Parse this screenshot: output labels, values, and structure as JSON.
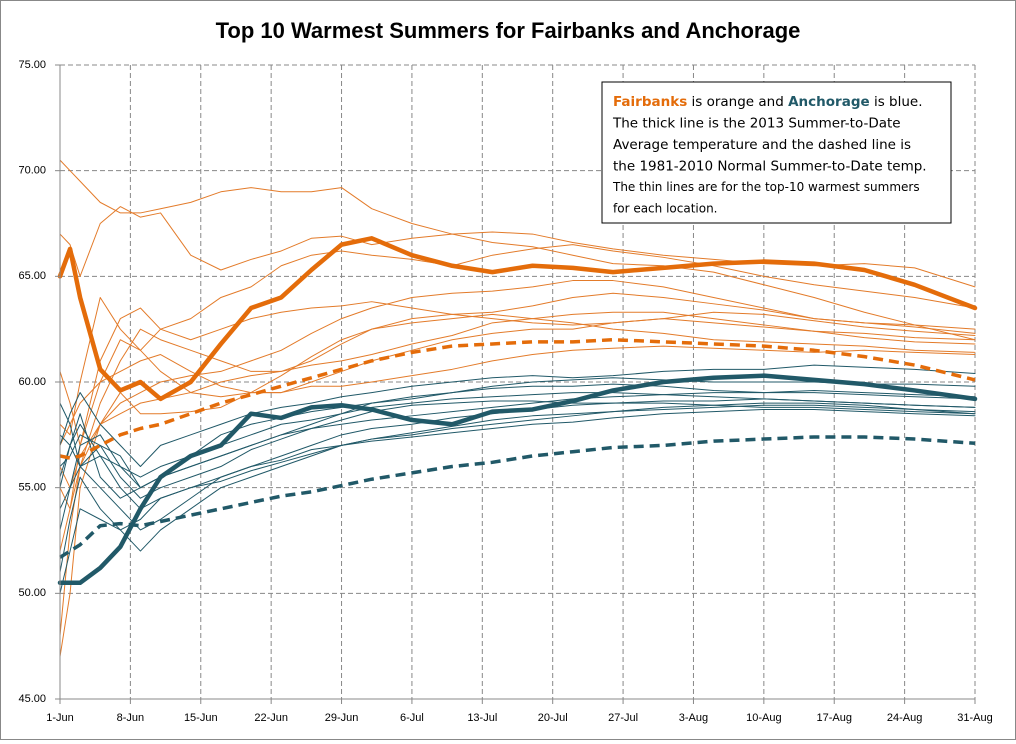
{
  "chart_data": {
    "type": "line",
    "title": "Top 10 Warmest Summers for Fairbanks and Anchorage",
    "annotation": {
      "lines": [
        [
          {
            "text": "Fairbanks",
            "color": "#e46c0a",
            "bold": true
          },
          {
            "text": " is orange and "
          },
          {
            "text": "Anchorage",
            "color": "#215968",
            "bold": true
          },
          {
            "text": " is blue."
          }
        ],
        [
          {
            "text": "The thick line is the 2013 Summer-to-Date"
          }
        ],
        [
          {
            "text": "Average temperature and the dashed line is"
          }
        ],
        [
          {
            "text": "the 1981-2010 Normal Summer-to-Date temp."
          }
        ],
        [
          {
            "text": "The thin lines are for the top-10 warmest summers"
          }
        ],
        [
          {
            "text": "for each location."
          }
        ]
      ]
    },
    "xlim": [
      0,
      91
    ],
    "xticks": [
      {
        "value": 0,
        "label": "1-Jun"
      },
      {
        "value": 7,
        "label": "8-Jun"
      },
      {
        "value": 14,
        "label": "15-Jun"
      },
      {
        "value": 21,
        "label": "22-Jun"
      },
      {
        "value": 28,
        "label": "29-Jun"
      },
      {
        "value": 35,
        "label": "6-Jul"
      },
      {
        "value": 42,
        "label": "13-Jul"
      },
      {
        "value": 49,
        "label": "20-Jul"
      },
      {
        "value": 56,
        "label": "27-Jul"
      },
      {
        "value": 63,
        "label": "3-Aug"
      },
      {
        "value": 70,
        "label": "10-Aug"
      },
      {
        "value": 77,
        "label": "17-Aug"
      },
      {
        "value": 84,
        "label": "24-Aug"
      },
      {
        "value": 91,
        "label": "31-Aug"
      }
    ],
    "ylim": [
      45,
      75
    ],
    "yticks": [
      {
        "value": 45,
        "label": "45.00"
      },
      {
        "value": 50,
        "label": "50.00"
      },
      {
        "value": 55,
        "label": "55.00"
      },
      {
        "value": 60,
        "label": "60.00"
      },
      {
        "value": 65,
        "label": "65.00"
      },
      {
        "value": 70,
        "label": "70.00"
      },
      {
        "value": 75,
        "label": "75.00"
      }
    ],
    "grid": true,
    "x": [
      0,
      1,
      2,
      4,
      6,
      8,
      10,
      13,
      16,
      19,
      22,
      25,
      28,
      31,
      35,
      39,
      43,
      47,
      51,
      55,
      60,
      65,
      70,
      75,
      80,
      85,
      91
    ],
    "series": [
      {
        "color": "#e37b2a",
        "width": 1,
        "values": [
          70.5,
          70.0,
          69.5,
          68.5,
          68.0,
          68.0,
          68.2,
          68.5,
          69.0,
          69.2,
          69.0,
          69.0,
          69.2,
          68.2,
          67.5,
          67.0,
          66.6,
          66.4,
          66.0,
          65.6,
          65.5,
          65.2,
          64.6,
          64.0,
          63.3,
          62.7,
          62.0
        ]
      },
      {
        "color": "#e37b2a",
        "width": 1,
        "values": [
          67.0,
          66.5,
          65.0,
          67.5,
          68.3,
          67.8,
          68.0,
          66.0,
          65.3,
          65.8,
          66.2,
          66.8,
          66.9,
          66.5,
          66.8,
          67.0,
          67.1,
          67.0,
          66.6,
          66.3,
          66.0,
          65.8,
          65.6,
          65.5,
          65.6,
          65.4,
          64.5
        ]
      },
      {
        "color": "#e37b2a",
        "width": 1,
        "values": [
          58.0,
          57.5,
          60.0,
          64.0,
          62.5,
          61.5,
          62.5,
          63.0,
          64.0,
          64.5,
          65.5,
          66.0,
          66.2,
          66.0,
          65.8,
          65.5,
          66.0,
          66.3,
          66.5,
          66.2,
          65.9,
          65.5,
          65.0,
          64.6,
          64.3,
          64.0,
          63.5
        ]
      },
      {
        "color": "#e37b2a",
        "width": 1,
        "values": [
          60.5,
          59.0,
          57.0,
          61.0,
          63.0,
          63.5,
          62.5,
          62.0,
          62.5,
          63.0,
          63.3,
          63.5,
          63.6,
          63.8,
          63.5,
          63.2,
          63.3,
          63.6,
          64.0,
          64.2,
          64.0,
          63.7,
          63.4,
          63.0,
          62.8,
          62.6,
          62.3
        ]
      },
      {
        "color": "#e37b2a",
        "width": 1,
        "values": [
          55.0,
          54.0,
          56.0,
          59.0,
          61.0,
          62.5,
          62.0,
          61.5,
          61.0,
          60.5,
          60.5,
          61.0,
          61.8,
          62.5,
          63.0,
          63.2,
          63.0,
          62.8,
          62.7,
          62.8,
          63.0,
          63.3,
          63.2,
          62.9,
          62.6,
          62.4,
          62.2
        ]
      },
      {
        "color": "#e37b2a",
        "width": 1,
        "values": [
          57.0,
          58.0,
          59.0,
          60.0,
          60.5,
          61.0,
          61.3,
          60.5,
          59.8,
          59.5,
          59.5,
          60.0,
          60.5,
          61.0,
          61.5,
          62.0,
          62.3,
          62.5,
          62.5,
          62.8,
          63.0,
          62.8,
          62.6,
          62.4,
          62.3,
          62.1,
          62.0
        ]
      },
      {
        "color": "#e37b2a",
        "width": 1,
        "values": [
          48.0,
          53.0,
          56.0,
          58.0,
          58.5,
          59.0,
          59.2,
          59.5,
          60.0,
          60.3,
          60.5,
          60.8,
          61.0,
          61.3,
          61.8,
          62.2,
          62.8,
          63.0,
          63.2,
          63.3,
          63.3,
          63.0,
          62.7,
          62.4,
          62.1,
          61.9,
          61.8
        ]
      },
      {
        "color": "#e37b2a",
        "width": 1,
        "values": [
          47.0,
          50.0,
          55.0,
          58.0,
          59.5,
          58.5,
          58.5,
          58.6,
          58.8,
          59.5,
          60.3,
          61.2,
          62.0,
          62.5,
          62.8,
          63.0,
          63.2,
          63.0,
          62.8,
          62.5,
          62.3,
          62.0,
          61.9,
          61.8,
          61.7,
          61.5,
          61.4
        ]
      },
      {
        "color": "#e37b2a",
        "width": 1,
        "values": [
          52.0,
          54.0,
          57.0,
          60.0,
          62.0,
          61.5,
          60.5,
          59.5,
          59.3,
          59.5,
          59.5,
          59.8,
          59.8,
          60.0,
          60.3,
          60.6,
          61.0,
          61.3,
          61.5,
          61.6,
          61.7,
          61.6,
          61.5,
          61.4,
          61.5,
          61.4,
          61.3
        ]
      },
      {
        "color": "#e37b2a",
        "width": 1,
        "values": [
          56.0,
          55.0,
          56.5,
          58.0,
          59.0,
          59.5,
          60.0,
          60.3,
          60.5,
          61.0,
          61.5,
          62.3,
          63.0,
          63.5,
          64.0,
          64.2,
          64.3,
          64.5,
          64.8,
          64.8,
          64.5,
          64.0,
          63.5,
          63.0,
          62.8,
          62.7,
          62.5
        ]
      },
      {
        "color": "#215968",
        "width": 1,
        "values": [
          57.0,
          58.5,
          59.5,
          58.0,
          57.0,
          56.0,
          57.0,
          57.5,
          58.0,
          58.5,
          58.8,
          59.0,
          59.3,
          59.5,
          59.8,
          60.0,
          60.2,
          60.3,
          60.2,
          60.3,
          60.5,
          60.6,
          60.6,
          60.8,
          60.7,
          60.6,
          60.4
        ]
      },
      {
        "color": "#215968",
        "width": 1,
        "values": [
          59.0,
          58.0,
          56.0,
          57.0,
          56.5,
          55.0,
          55.5,
          56.0,
          56.5,
          57.0,
          57.5,
          58.0,
          58.5,
          59.0,
          59.3,
          59.5,
          59.8,
          60.0,
          60.1,
          60.2,
          60.1,
          60.0,
          60.0,
          60.0,
          59.9,
          59.9,
          59.8
        ]
      },
      {
        "color": "#215968",
        "width": 1,
        "values": [
          55.0,
          57.0,
          58.5,
          55.5,
          54.5,
          55.0,
          55.5,
          56.5,
          57.5,
          58.0,
          58.3,
          58.6,
          58.8,
          59.0,
          59.2,
          59.5,
          59.7,
          59.8,
          59.8,
          59.9,
          59.8,
          59.6,
          59.5,
          59.5,
          59.4,
          59.3,
          59.2
        ]
      },
      {
        "color": "#215968",
        "width": 1,
        "values": [
          57.5,
          57.0,
          56.0,
          56.5,
          56.0,
          55.5,
          56.0,
          56.5,
          57.0,
          57.5,
          58.0,
          58.2,
          58.5,
          58.8,
          59.0,
          59.2,
          59.3,
          59.4,
          59.5,
          59.5,
          59.4,
          59.3,
          59.2,
          59.1,
          59.0,
          58.9,
          58.8
        ]
      },
      {
        "color": "#215968",
        "width": 1,
        "values": [
          56.0,
          56.5,
          57.5,
          57.0,
          55.5,
          54.5,
          55.0,
          55.5,
          56.0,
          56.8,
          57.3,
          57.8,
          58.2,
          58.6,
          58.9,
          59.0,
          59.1,
          59.1,
          59.0,
          59.0,
          59.0,
          58.9,
          58.8,
          58.8,
          58.7,
          58.6,
          58.5
        ]
      },
      {
        "color": "#215968",
        "width": 1,
        "values": [
          54.0,
          55.0,
          56.0,
          55.0,
          54.0,
          53.0,
          53.5,
          54.5,
          55.5,
          56.0,
          56.5,
          57.0,
          57.5,
          57.8,
          58.0,
          58.3,
          58.5,
          58.7,
          58.9,
          59.0,
          59.1,
          59.1,
          59.2,
          59.1,
          59.0,
          58.9,
          58.8
        ]
      },
      {
        "color": "#215968",
        "width": 1,
        "values": [
          51.0,
          53.5,
          55.5,
          54.0,
          53.0,
          52.0,
          53.0,
          54.0,
          55.0,
          55.5,
          56.0,
          56.5,
          57.0,
          57.3,
          57.6,
          57.9,
          58.2,
          58.4,
          58.5,
          58.6,
          58.7,
          58.8,
          58.9,
          58.9,
          58.8,
          58.7,
          58.6
        ]
      },
      {
        "color": "#215968",
        "width": 1,
        "values": [
          50.0,
          52.0,
          54.0,
          53.5,
          53.0,
          53.5,
          54.5,
          55.0,
          55.5,
          56.0,
          56.3,
          56.8,
          57.0,
          57.3,
          57.5,
          57.8,
          58.0,
          58.2,
          58.4,
          58.6,
          58.8,
          58.9,
          59.0,
          59.0,
          58.9,
          58.7,
          58.5
        ]
      },
      {
        "color": "#215968",
        "width": 1,
        "values": [
          55.5,
          57.0,
          58.0,
          56.5,
          55.0,
          54.0,
          54.5,
          55.0,
          55.3,
          55.8,
          56.2,
          56.6,
          57.0,
          57.2,
          57.4,
          57.6,
          57.8,
          58.0,
          58.1,
          58.3,
          58.5,
          58.6,
          58.7,
          58.7,
          58.6,
          58.5,
          58.4
        ]
      },
      {
        "color": "#215968",
        "width": 1,
        "values": [
          53.0,
          55.0,
          57.0,
          57.5,
          56.0,
          55.0,
          55.5,
          56.0,
          56.5,
          57.0,
          57.5,
          57.8,
          58.0,
          58.2,
          58.4,
          58.6,
          58.8,
          59.0,
          59.2,
          59.3,
          59.4,
          59.5,
          59.5,
          59.6,
          59.5,
          59.4,
          59.3
        ]
      },
      {
        "color": "#e46c0a",
        "width": 3.5,
        "dash": true,
        "values": [
          56.5,
          56.4,
          56.5,
          57.0,
          57.5,
          57.8,
          58.0,
          58.5,
          59.0,
          59.4,
          59.8,
          60.2,
          60.6,
          61.0,
          61.4,
          61.7,
          61.8,
          61.9,
          61.9,
          62.0,
          61.9,
          61.8,
          61.7,
          61.5,
          61.2,
          60.8,
          60.1
        ]
      },
      {
        "color": "#215968",
        "width": 3.5,
        "dash": true,
        "values": [
          51.7,
          52.0,
          52.3,
          53.2,
          53.3,
          53.2,
          53.4,
          53.7,
          54.0,
          54.3,
          54.6,
          54.8,
          55.1,
          55.4,
          55.7,
          56.0,
          56.2,
          56.5,
          56.7,
          56.9,
          57.0,
          57.2,
          57.3,
          57.4,
          57.4,
          57.3,
          57.1
        ]
      },
      {
        "color": "#e46c0a",
        "width": 4.5,
        "values": [
          65.0,
          66.3,
          64.0,
          60.6,
          59.6,
          60.0,
          59.2,
          60.0,
          61.8,
          63.5,
          64.0,
          65.3,
          66.5,
          66.8,
          66.0,
          65.5,
          65.2,
          65.5,
          65.4,
          65.2,
          65.4,
          65.6,
          65.7,
          65.6,
          65.3,
          64.6,
          63.5
        ]
      },
      {
        "color": "#215968",
        "width": 4.5,
        "values": [
          50.5,
          50.5,
          50.5,
          51.2,
          52.2,
          54.0,
          55.5,
          56.5,
          57.0,
          58.5,
          58.3,
          58.8,
          58.9,
          58.7,
          58.2,
          58.0,
          58.6,
          58.7,
          59.1,
          59.6,
          60.0,
          60.2,
          60.3,
          60.1,
          59.9,
          59.6,
          59.2
        ]
      }
    ]
  }
}
